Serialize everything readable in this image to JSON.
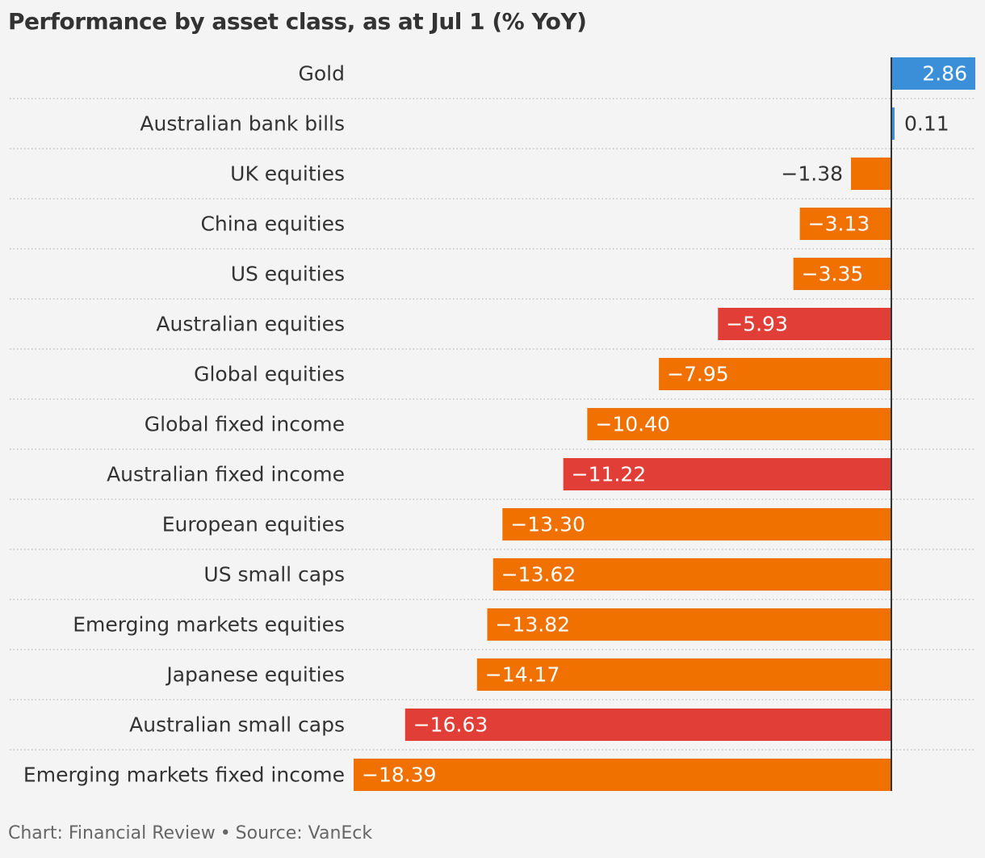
{
  "chart_data": {
    "type": "bar",
    "orientation": "horizontal",
    "title": "Performance by asset class, as at Jul 1 (% YoY)",
    "categories": [
      "Gold",
      "Australian bank bills",
      "UK equities",
      "China equities",
      "US equities",
      "Australian equities",
      "Global equities",
      "Global fixed income",
      "Australian fixed income",
      "European equities",
      "US small caps",
      "Emerging markets equities",
      "Japanese equities",
      "Australian small caps",
      "Emerging markets fixed income"
    ],
    "values": [
      2.86,
      0.11,
      -1.38,
      -3.13,
      -3.35,
      -5.93,
      -7.95,
      -10.4,
      -11.22,
      -13.3,
      -13.62,
      -13.82,
      -14.17,
      -16.63,
      -18.39
    ],
    "value_labels": [
      "2.86",
      "0.11",
      "−1.38",
      "−3.13",
      "−3.35",
      "−5.93",
      "−7.95",
      "−10.40",
      "−11.22",
      "−13.30",
      "−13.62",
      "−13.82",
      "−14.17",
      "−16.63",
      "−18.39"
    ],
    "colors": [
      "#3b8fd9",
      "#3b8fd9",
      "#f07000",
      "#f07000",
      "#f07000",
      "#e03e36",
      "#f07000",
      "#f07000",
      "#e03e36",
      "#f07000",
      "#f07000",
      "#f07000",
      "#f07000",
      "#e03e36",
      "#f07000"
    ],
    "xlim": [
      -18.39,
      2.86
    ],
    "xlabel": "",
    "ylabel": "",
    "grid": false,
    "legend": "none"
  },
  "footer": {
    "chart_credit": "Chart: Financial Review",
    "separator": "•",
    "source": "Source: VanEck"
  }
}
